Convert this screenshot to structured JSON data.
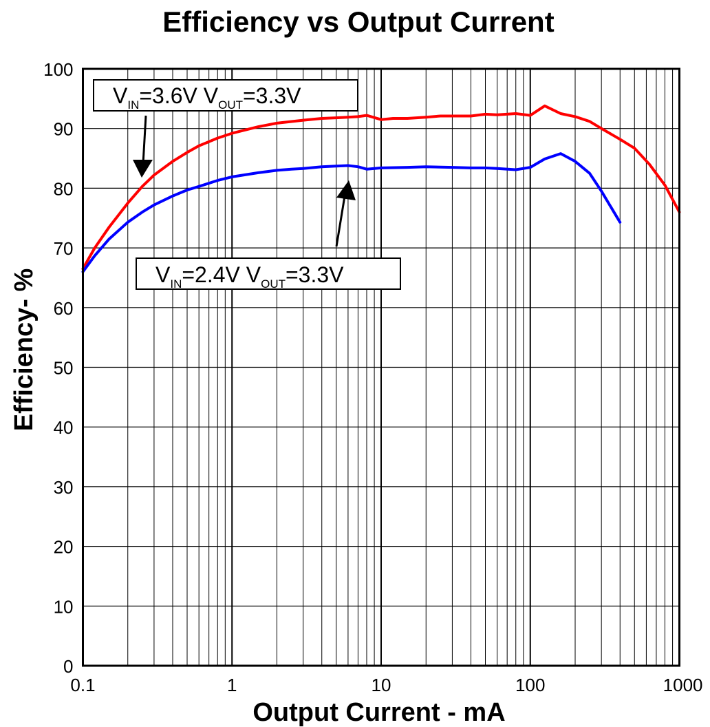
{
  "chart_data": {
    "type": "line",
    "title": "Efficiency vs Output Current",
    "xlabel": "Output Current - mA",
    "ylabel": "Efficiency- %",
    "xscale": "log",
    "xlim": [
      0.1,
      1000
    ],
    "ylim": [
      0,
      100
    ],
    "xticks": [
      "0.1",
      "1",
      "10",
      "100",
      "1000"
    ],
    "yticks": [
      "0",
      "10",
      "20",
      "30",
      "40",
      "50",
      "60",
      "70",
      "80",
      "90",
      "100"
    ],
    "grid": true,
    "series": [
      {
        "color": "#ff0000",
        "points": [
          [
            0.1,
            66.5
          ],
          [
            0.12,
            70.0
          ],
          [
            0.15,
            73.5
          ],
          [
            0.2,
            77.5
          ],
          [
            0.25,
            80.3
          ],
          [
            0.3,
            82.2
          ],
          [
            0.4,
            84.5
          ],
          [
            0.5,
            86.0
          ],
          [
            0.6,
            87.1
          ],
          [
            0.8,
            88.4
          ],
          [
            1.0,
            89.2
          ],
          [
            1.5,
            90.3
          ],
          [
            2.0,
            90.9
          ],
          [
            3.0,
            91.4
          ],
          [
            4.0,
            91.7
          ],
          [
            5.0,
            91.8
          ],
          [
            6.0,
            91.9
          ],
          [
            7.0,
            92.0
          ],
          [
            8.0,
            92.2
          ],
          [
            10,
            91.5
          ],
          [
            12,
            91.7
          ],
          [
            15,
            91.7
          ],
          [
            20,
            91.9
          ],
          [
            25,
            92.1
          ],
          [
            30,
            92.1
          ],
          [
            40,
            92.1
          ],
          [
            50,
            92.4
          ],
          [
            60,
            92.3
          ],
          [
            80,
            92.5
          ],
          [
            100,
            92.2
          ],
          [
            125,
            93.8
          ],
          [
            160,
            92.5
          ],
          [
            200,
            92.0
          ],
          [
            250,
            91.2
          ],
          [
            300,
            90.0
          ],
          [
            400,
            88.2
          ],
          [
            500,
            86.7
          ],
          [
            630,
            84.0
          ],
          [
            800,
            80.5
          ],
          [
            1000,
            76.0
          ]
        ]
      },
      {
        "color": "#0000ff",
        "points": [
          [
            0.1,
            66.0
          ],
          [
            0.12,
            68.7
          ],
          [
            0.15,
            71.5
          ],
          [
            0.2,
            74.3
          ],
          [
            0.25,
            76.0
          ],
          [
            0.3,
            77.2
          ],
          [
            0.4,
            78.7
          ],
          [
            0.5,
            79.7
          ],
          [
            0.6,
            80.3
          ],
          [
            0.8,
            81.3
          ],
          [
            1.0,
            81.9
          ],
          [
            1.5,
            82.6
          ],
          [
            2.0,
            83.0
          ],
          [
            2.5,
            83.2
          ],
          [
            3.0,
            83.3
          ],
          [
            4.0,
            83.6
          ],
          [
            5.0,
            83.7
          ],
          [
            6.0,
            83.8
          ],
          [
            7.0,
            83.6
          ],
          [
            8.0,
            83.2
          ],
          [
            10,
            83.4
          ],
          [
            15,
            83.5
          ],
          [
            20,
            83.6
          ],
          [
            30,
            83.5
          ],
          [
            40,
            83.4
          ],
          [
            50,
            83.4
          ],
          [
            60,
            83.3
          ],
          [
            80,
            83.1
          ],
          [
            100,
            83.5
          ],
          [
            125,
            84.9
          ],
          [
            160,
            85.8
          ],
          [
            200,
            84.5
          ],
          [
            250,
            82.5
          ],
          [
            300,
            79.5
          ],
          [
            400,
            74.3
          ]
        ]
      }
    ],
    "annotations": [
      {
        "main1": "V",
        "sub1": "IN",
        "main2": "=3.6V  V",
        "sub2": "OUT",
        "main3": "=3.3V"
      },
      {
        "main1": "V",
        "sub1": "IN",
        "main2": "=2.4V  V",
        "sub2": "OUT",
        "main3": "=3.3V"
      }
    ]
  }
}
